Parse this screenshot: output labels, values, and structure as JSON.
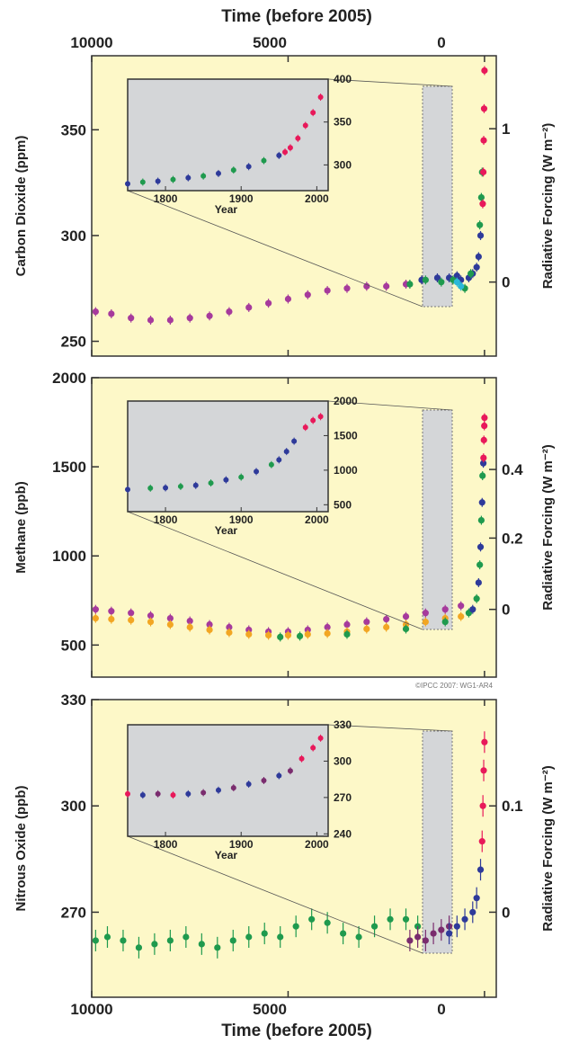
{
  "figure": {
    "top_axis": {
      "label": "Time (before 2005)",
      "ticks": [
        "10000",
        "5000",
        "0"
      ]
    },
    "bottom_axis": {
      "label": "Time (before 2005)",
      "ticks": [
        "10000",
        "5000",
        "0"
      ]
    },
    "credit": "©IPCC 2007: WG1-AR4"
  },
  "chart_data": [
    {
      "type": "scatter",
      "ylabel": "Carbon Dioxide (ppm)",
      "y2label": "Radiative Forcing (W m⁻²)",
      "xlabel": "Time (before 2005)",
      "xlim": [
        10000,
        -300
      ],
      "ylim": [
        243,
        385
      ],
      "yticks": [
        "350",
        "300",
        "250"
      ],
      "ytick_values": [
        350,
        300,
        250
      ],
      "y2ticks": [
        "1",
        "0"
      ],
      "y2tick_values": [
        350.5,
        278
      ],
      "series": [
        {
          "color": "#a63a9c",
          "points": [
            [
              9900,
              264
            ],
            [
              9500,
              263
            ],
            [
              9000,
              261
            ],
            [
              8500,
              260
            ],
            [
              8000,
              260
            ],
            [
              7500,
              261
            ],
            [
              7000,
              262
            ],
            [
              6500,
              264
            ],
            [
              6000,
              266
            ],
            [
              5500,
              268
            ],
            [
              5000,
              270
            ],
            [
              4500,
              272
            ],
            [
              4000,
              274
            ],
            [
              3500,
              275
            ],
            [
              3000,
              276
            ],
            [
              2500,
              276
            ],
            [
              2000,
              277
            ]
          ]
        },
        {
          "color": "#2e3a9a",
          "points": [
            [
              1600,
              279
            ],
            [
              1200,
              280
            ],
            [
              900,
              280
            ],
            [
              700,
              281
            ],
            [
              600,
              279
            ],
            [
              400,
              280
            ],
            [
              300,
              282
            ],
            [
              200,
              285
            ],
            [
              150,
              290
            ],
            [
              100,
              300
            ]
          ]
        },
        {
          "color": "#1f9a4e",
          "points": [
            [
              1900,
              277
            ],
            [
              1500,
              279
            ],
            [
              1100,
              278
            ],
            [
              800,
              279
            ],
            [
              500,
              275
            ],
            [
              350,
              282
            ],
            [
              120,
              305
            ],
            [
              80,
              318
            ],
            [
              60,
              330
            ]
          ]
        },
        {
          "color": "#2bb8d8",
          "points": [
            [
              700,
              278
            ],
            [
              600,
              276
            ]
          ]
        },
        {
          "color": "#e8195a",
          "points": [
            [
              45,
              315
            ],
            [
              30,
              330
            ],
            [
              20,
              345
            ],
            [
              10,
              360
            ],
            [
              0,
              378
            ]
          ]
        }
      ],
      "inset": {
        "xlabel": "Year",
        "xticks": [
          "1800",
          "1900",
          "2000"
        ],
        "xtick_values": [
          1800,
          1900,
          2000
        ],
        "yticks": [
          "400",
          "350",
          "300"
        ],
        "ytick_values": [
          400,
          350,
          300
        ],
        "xlim": [
          1750,
          2015
        ],
        "ylim": [
          270,
          400
        ],
        "points": [
          [
            1750,
            278,
            "#2e3a9a"
          ],
          [
            1770,
            280,
            "#1f9a4e"
          ],
          [
            1790,
            281,
            "#2e3a9a"
          ],
          [
            1810,
            283,
            "#1f9a4e"
          ],
          [
            1830,
            285,
            "#2e3a9a"
          ],
          [
            1850,
            287,
            "#1f9a4e"
          ],
          [
            1870,
            290,
            "#2e3a9a"
          ],
          [
            1890,
            294,
            "#1f9a4e"
          ],
          [
            1910,
            298,
            "#2e3a9a"
          ],
          [
            1930,
            305,
            "#1f9a4e"
          ],
          [
            1950,
            311,
            "#2e3a9a"
          ],
          [
            1958,
            315,
            "#e8195a"
          ],
          [
            1965,
            320,
            "#e8195a"
          ],
          [
            1975,
            331,
            "#e8195a"
          ],
          [
            1985,
            346,
            "#e8195a"
          ],
          [
            1995,
            361,
            "#e8195a"
          ],
          [
            2005,
            379,
            "#e8195a"
          ]
        ]
      }
    },
    {
      "type": "scatter",
      "ylabel": "Methane (ppb)",
      "y2label": "Radiative Forcing (W m⁻²)",
      "xlabel": "Time (before 2005)",
      "xlim": [
        10000,
        -300
      ],
      "ylim": [
        320,
        2000
      ],
      "yticks": [
        "2000",
        "1500",
        "1000",
        "500"
      ],
      "ytick_values": [
        2000,
        1500,
        1000,
        500
      ],
      "y2ticks": [
        "0.4",
        "0.2",
        "0"
      ],
      "y2tick_values": [
        1485,
        1100,
        700
      ],
      "series": [
        {
          "color": "#a63a9c",
          "points": [
            [
              9900,
              700
            ],
            [
              9500,
              690
            ],
            [
              9000,
              680
            ],
            [
              8500,
              665
            ],
            [
              8000,
              650
            ],
            [
              7500,
              635
            ],
            [
              7000,
              615
            ],
            [
              6500,
              600
            ],
            [
              6000,
              585
            ],
            [
              5500,
              575
            ],
            [
              5000,
              575
            ],
            [
              4500,
              585
            ],
            [
              4000,
              600
            ],
            [
              3500,
              615
            ],
            [
              3000,
              630
            ],
            [
              2500,
              645
            ],
            [
              2000,
              660
            ],
            [
              1500,
              680
            ],
            [
              1000,
              700
            ],
            [
              600,
              720
            ]
          ]
        },
        {
          "color": "#f2a623",
          "points": [
            [
              9900,
              650
            ],
            [
              9500,
              645
            ],
            [
              9000,
              640
            ],
            [
              8500,
              630
            ],
            [
              8000,
              615
            ],
            [
              7500,
              600
            ],
            [
              7000,
              585
            ],
            [
              6500,
              570
            ],
            [
              6000,
              560
            ],
            [
              5500,
              555
            ],
            [
              5000,
              555
            ],
            [
              4500,
              560
            ],
            [
              4000,
              565
            ],
            [
              3500,
              575
            ],
            [
              3000,
              590
            ],
            [
              2500,
              600
            ],
            [
              2000,
              615
            ],
            [
              1500,
              630
            ],
            [
              1000,
              650
            ],
            [
              600,
              660
            ]
          ]
        },
        {
          "color": "#1f9a4e",
          "points": [
            [
              5200,
              545
            ],
            [
              4700,
              550
            ],
            [
              3500,
              560
            ],
            [
              2000,
              590
            ],
            [
              1000,
              630
            ],
            [
              400,
              680
            ],
            [
              200,
              760
            ],
            [
              120,
              950
            ],
            [
              80,
              1200
            ],
            [
              50,
              1450
            ]
          ]
        },
        {
          "color": "#2e3a9a",
          "points": [
            [
              300,
              700
            ],
            [
              150,
              850
            ],
            [
              100,
              1050
            ],
            [
              60,
              1300
            ],
            [
              30,
              1520
            ]
          ]
        },
        {
          "color": "#e8195a",
          "points": [
            [
              25,
              1550
            ],
            [
              15,
              1650
            ],
            [
              5,
              1730
            ],
            [
              0,
              1775
            ]
          ]
        }
      ],
      "inset": {
        "xlabel": "Year",
        "xticks": [
          "1800",
          "1900",
          "2000"
        ],
        "xtick_values": [
          1800,
          1900,
          2000
        ],
        "yticks": [
          "2000",
          "1500",
          "1000",
          "500"
        ],
        "ytick_values": [
          2000,
          1500,
          1000,
          500
        ],
        "xlim": [
          1750,
          2015
        ],
        "ylim": [
          400,
          2000
        ],
        "points": [
          [
            1750,
            720,
            "#2e3a9a"
          ],
          [
            1780,
            740,
            "#1f9a4e"
          ],
          [
            1800,
            745,
            "#2e3a9a"
          ],
          [
            1820,
            765,
            "#1f9a4e"
          ],
          [
            1840,
            780,
            "#2e3a9a"
          ],
          [
            1860,
            815,
            "#1f9a4e"
          ],
          [
            1880,
            860,
            "#2e3a9a"
          ],
          [
            1900,
            900,
            "#1f9a4e"
          ],
          [
            1920,
            980,
            "#2e3a9a"
          ],
          [
            1940,
            1080,
            "#1f9a4e"
          ],
          [
            1950,
            1150,
            "#2e3a9a"
          ],
          [
            1960,
            1270,
            "#2e3a9a"
          ],
          [
            1970,
            1420,
            "#2e3a9a"
          ],
          [
            1985,
            1620,
            "#e8195a"
          ],
          [
            1995,
            1720,
            "#e8195a"
          ],
          [
            2005,
            1775,
            "#e8195a"
          ]
        ]
      }
    },
    {
      "type": "scatter",
      "ylabel": "Nitrous Oxide (ppb)",
      "y2label": "Radiative Forcing (W m⁻²)",
      "xlabel": "Time (before 2005)",
      "xlim": [
        10000,
        -300
      ],
      "ylim": [
        246,
        330
      ],
      "yticks": [
        "330",
        "300",
        "270"
      ],
      "ytick_values": [
        330,
        300,
        270
      ],
      "y2ticks": [
        "0.1",
        "0"
      ],
      "y2tick_values": [
        300,
        270
      ],
      "series": [
        {
          "color": "#1f9a4e",
          "points": [
            [
              9900,
              262
            ],
            [
              9600,
              263
            ],
            [
              9200,
              262
            ],
            [
              8800,
              260
            ],
            [
              8400,
              261
            ],
            [
              8000,
              262
            ],
            [
              7600,
              263
            ],
            [
              7200,
              261
            ],
            [
              6800,
              260
            ],
            [
              6400,
              262
            ],
            [
              6000,
              263
            ],
            [
              5600,
              264
            ],
            [
              5200,
              263
            ],
            [
              4800,
              266
            ],
            [
              4400,
              268
            ],
            [
              4000,
              267
            ],
            [
              3600,
              264
            ],
            [
              3200,
              263
            ],
            [
              2800,
              266
            ],
            [
              2400,
              268
            ],
            [
              2000,
              268
            ],
            [
              1700,
              266
            ]
          ]
        },
        {
          "color": "#7a2c6e",
          "points": [
            [
              1900,
              262
            ],
            [
              1700,
              263
            ],
            [
              1500,
              262
            ],
            [
              1300,
              264
            ],
            [
              1100,
              265
            ],
            [
              900,
              266
            ]
          ]
        },
        {
          "color": "#2e3a9a",
          "points": [
            [
              900,
              264
            ],
            [
              700,
              266
            ],
            [
              500,
              268
            ],
            [
              300,
              270
            ],
            [
              200,
              274
            ],
            [
              100,
              282
            ]
          ]
        },
        {
          "color": "#e8195a",
          "points": [
            [
              60,
              290
            ],
            [
              40,
              300
            ],
            [
              20,
              310
            ],
            [
              0,
              318
            ]
          ]
        }
      ],
      "inset": {
        "xlabel": "Year",
        "xticks": [
          "1800",
          "1900",
          "2000"
        ],
        "xtick_values": [
          1800,
          1900,
          2000
        ],
        "yticks": [
          "330",
          "300",
          "270",
          "240"
        ],
        "ytick_values": [
          330,
          300,
          270,
          240
        ],
        "xlim": [
          1750,
          2015
        ],
        "ylim": [
          238,
          330
        ],
        "points": [
          [
            1750,
            273,
            "#e8195a"
          ],
          [
            1770,
            272,
            "#2e3a9a"
          ],
          [
            1790,
            273,
            "#7a2c6e"
          ],
          [
            1810,
            272,
            "#e8195a"
          ],
          [
            1830,
            273,
            "#2e3a9a"
          ],
          [
            1850,
            274,
            "#7a2c6e"
          ],
          [
            1870,
            276,
            "#2e3a9a"
          ],
          [
            1890,
            278,
            "#7a2c6e"
          ],
          [
            1910,
            281,
            "#2e3a9a"
          ],
          [
            1930,
            284,
            "#7a2c6e"
          ],
          [
            1950,
            288,
            "#2e3a9a"
          ],
          [
            1965,
            292,
            "#7a2c6e"
          ],
          [
            1980,
            302,
            "#e8195a"
          ],
          [
            1995,
            311,
            "#e8195a"
          ],
          [
            2005,
            319,
            "#e8195a"
          ]
        ]
      }
    }
  ]
}
